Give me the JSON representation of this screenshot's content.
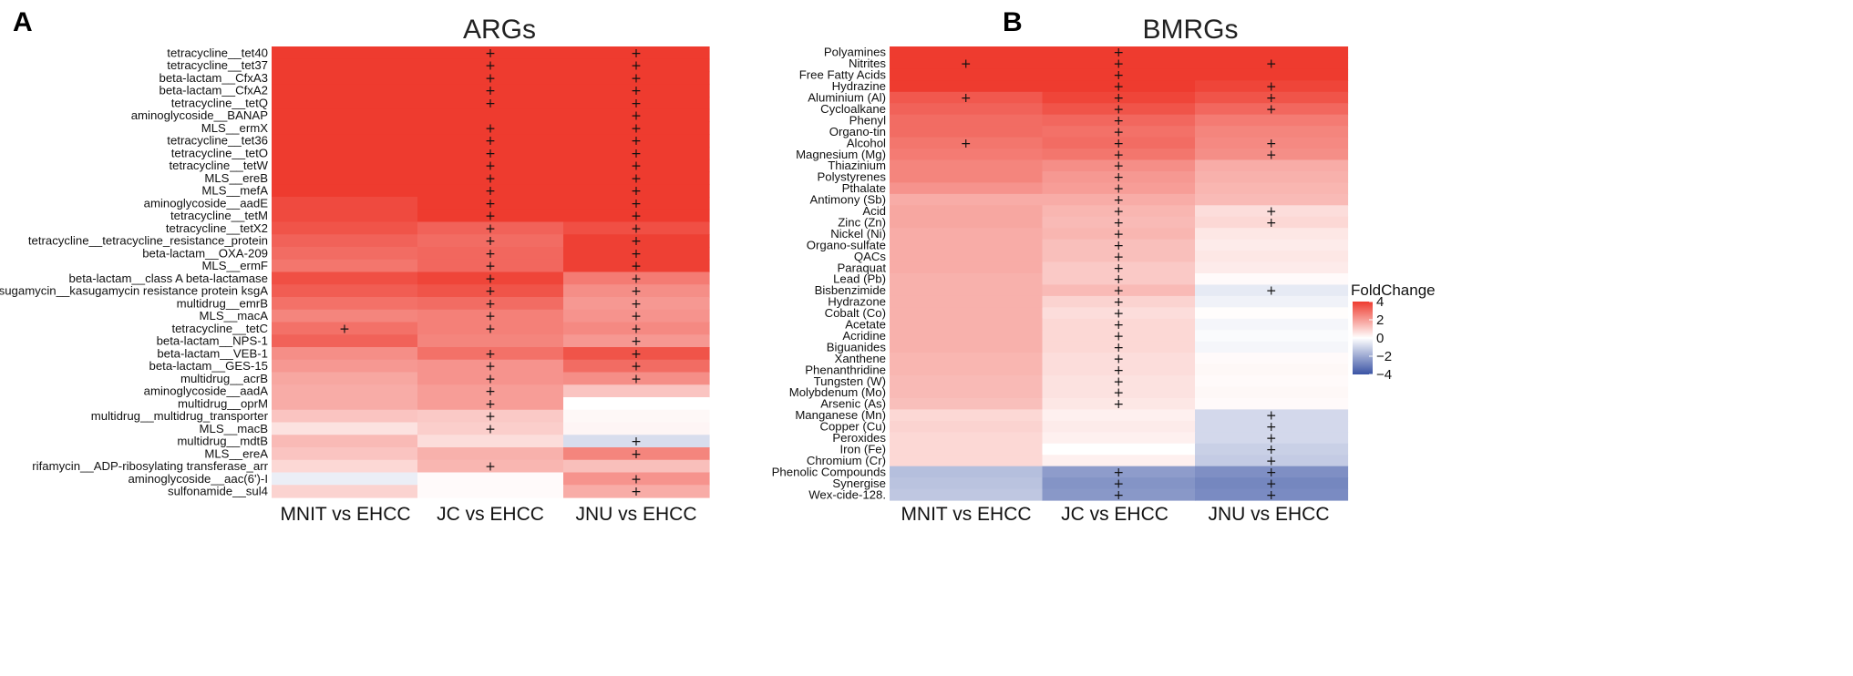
{
  "colors": {
    "high": "#ee3b2f",
    "mid": "#ffffff",
    "low": "#3a53a4"
  },
  "chart_data": [
    {
      "type": "heatmap",
      "panel_label": "A",
      "title": "ARGs",
      "columns": [
        "MNIT vs EHCC",
        "JC vs EHCC",
        "JNU vs EHCC"
      ],
      "rows": [
        "tetracycline__tet40",
        "tetracycline__tet37",
        "beta-lactam__CfxA3",
        "beta-lactam__CfxA2",
        "tetracycline__tetQ",
        "aminoglycoside__BANAP",
        "MLS__ermX",
        "tetracycline__tet36",
        "tetracycline__tetO",
        "tetracycline__tetW",
        "MLS__ereB",
        "MLS__mefA",
        "aminoglycoside__aadE",
        "tetracycline__tetM",
        "tetracycline__tetX2",
        "tetracycline__tetracycline_resistance_protein",
        "beta-lactam__OXA-209",
        "MLS__ermF",
        "beta-lactam__class A beta-lactamase",
        "kasugamycin__kasugamycin resistance protein ksgA",
        "multidrug__emrB",
        "MLS__macA",
        "tetracycline__tetC",
        "beta-lactam__NPS-1",
        "beta-lactam__VEB-1",
        "beta-lactam__GES-15",
        "multidrug__acrB",
        "aminoglycoside__aadA",
        "multidrug__oprM",
        "multidrug__multidrug_transporter",
        "MLS__macB",
        "multidrug__mdtB",
        "MLS__ereA",
        "rifamycin__ADP-ribosylating transferase_arr",
        "aminoglycoside__aac(6')-I",
        "sulfonamide__sul4"
      ],
      "values": [
        [
          4.0,
          4.0,
          4.0
        ],
        [
          4.0,
          4.0,
          4.0
        ],
        [
          4.0,
          4.0,
          4.0
        ],
        [
          4.0,
          4.0,
          4.0
        ],
        [
          4.0,
          4.0,
          4.0
        ],
        [
          4.0,
          4.0,
          4.0
        ],
        [
          4.0,
          4.0,
          4.0
        ],
        [
          4.0,
          4.0,
          4.0
        ],
        [
          4.0,
          4.0,
          4.0
        ],
        [
          4.0,
          4.0,
          4.0
        ],
        [
          4.0,
          4.0,
          4.0
        ],
        [
          4.0,
          4.0,
          4.0
        ],
        [
          3.7,
          4.0,
          4.0
        ],
        [
          3.7,
          4.0,
          4.0
        ],
        [
          3.5,
          3.2,
          3.6
        ],
        [
          3.2,
          3.0,
          3.9
        ],
        [
          3.0,
          3.1,
          3.9
        ],
        [
          2.8,
          3.1,
          3.9
        ],
        [
          3.6,
          3.8,
          2.7
        ],
        [
          3.3,
          3.5,
          2.3
        ],
        [
          2.9,
          3.0,
          2.1
        ],
        [
          2.5,
          2.6,
          2.2
        ],
        [
          2.9,
          2.6,
          2.4
        ],
        [
          3.2,
          2.5,
          2.1
        ],
        [
          2.3,
          2.9,
          3.5
        ],
        [
          2.1,
          2.2,
          3.0
        ],
        [
          1.8,
          2.2,
          2.3
        ],
        [
          1.7,
          2.0,
          1.2
        ],
        [
          1.7,
          2.0,
          0.0
        ],
        [
          1.2,
          1.1,
          0.15
        ],
        [
          0.6,
          1.0,
          0.2
        ],
        [
          1.4,
          0.7,
          -0.8
        ],
        [
          1.2,
          1.6,
          2.5
        ],
        [
          0.8,
          1.5,
          1.3
        ],
        [
          -0.4,
          0.1,
          2.2
        ],
        [
          0.9,
          0.1,
          1.7
        ]
      ],
      "significant": [
        [
          false,
          true,
          true
        ],
        [
          false,
          true,
          true
        ],
        [
          false,
          true,
          true
        ],
        [
          false,
          true,
          true
        ],
        [
          false,
          true,
          true
        ],
        [
          false,
          false,
          true
        ],
        [
          false,
          true,
          true
        ],
        [
          false,
          true,
          true
        ],
        [
          false,
          true,
          true
        ],
        [
          false,
          true,
          true
        ],
        [
          false,
          true,
          true
        ],
        [
          false,
          true,
          true
        ],
        [
          false,
          true,
          true
        ],
        [
          false,
          true,
          true
        ],
        [
          false,
          true,
          true
        ],
        [
          false,
          true,
          true
        ],
        [
          false,
          true,
          true
        ],
        [
          false,
          true,
          true
        ],
        [
          false,
          true,
          true
        ],
        [
          false,
          true,
          true
        ],
        [
          false,
          true,
          true
        ],
        [
          false,
          true,
          true
        ],
        [
          true,
          true,
          true
        ],
        [
          false,
          false,
          true
        ],
        [
          false,
          true,
          true
        ],
        [
          false,
          true,
          true
        ],
        [
          false,
          true,
          true
        ],
        [
          false,
          true,
          false
        ],
        [
          false,
          true,
          false
        ],
        [
          false,
          true,
          false
        ],
        [
          false,
          true,
          false
        ],
        [
          false,
          false,
          true
        ],
        [
          false,
          false,
          true
        ],
        [
          false,
          true,
          false
        ],
        [
          false,
          false,
          true
        ],
        [
          false,
          false,
          true
        ]
      ],
      "significance_marker": "+"
    },
    {
      "type": "heatmap",
      "panel_label": "B",
      "title": "BMRGs",
      "columns": [
        "MNIT vs EHCC",
        "JC vs EHCC",
        "JNU vs EHCC"
      ],
      "rows": [
        "Polyamines",
        "Nitrites",
        "Free Fatty Acids",
        "Hydrazine",
        "Aluminium (Al)",
        "Cycloalkane",
        "Phenyl",
        "Organo-tin",
        "Alcohol",
        "Magnesium (Mg)",
        "Thiazinium",
        "Polystyrenes",
        "Pthalate",
        "Antimony (Sb)",
        "Acid",
        "Zinc (Zn)",
        "Nickel (Ni)",
        "Organo-sulfate",
        "QACs",
        "Paraquat",
        "Lead (Pb)",
        "Bisbenzimide",
        "Hydrazone",
        "Cobalt (Co)",
        "Acetate",
        "Acridine",
        "Biguanides",
        "Xanthene",
        "Phenanthridine",
        "Tungsten (W)",
        "Molybdenum (Mo)",
        "Arsenic (As)",
        "Manganese (Mn)",
        "Copper (Cu)",
        "Peroxides",
        "Iron (Fe)",
        "Chromium (Cr)",
        "Phenolic Compounds",
        "Synergise",
        "Wex-cide-128."
      ],
      "values": [
        [
          4.0,
          4.0,
          4.0
        ],
        [
          4.0,
          4.0,
          4.0
        ],
        [
          4.0,
          4.0,
          4.0
        ],
        [
          4.0,
          4.0,
          3.8
        ],
        [
          3.4,
          3.8,
          3.5
        ],
        [
          3.2,
          3.5,
          3.1
        ],
        [
          3.0,
          3.1,
          2.7
        ],
        [
          3.0,
          2.9,
          2.5
        ],
        [
          2.8,
          3.0,
          2.4
        ],
        [
          2.7,
          2.8,
          2.3
        ],
        [
          2.5,
          2.3,
          1.7
        ],
        [
          2.5,
          2.1,
          1.6
        ],
        [
          2.2,
          2.0,
          1.5
        ],
        [
          1.7,
          1.7,
          1.4
        ],
        [
          1.8,
          1.5,
          0.7
        ],
        [
          1.8,
          1.4,
          0.8
        ],
        [
          1.7,
          1.5,
          0.5
        ],
        [
          1.7,
          1.3,
          0.4
        ],
        [
          1.7,
          1.3,
          0.5
        ],
        [
          1.7,
          1.1,
          0.4
        ],
        [
          1.6,
          1.1,
          0.1
        ],
        [
          1.6,
          1.4,
          -0.5
        ],
        [
          1.6,
          0.9,
          -0.3
        ],
        [
          1.6,
          0.7,
          0.05
        ],
        [
          1.6,
          0.8,
          -0.2
        ],
        [
          1.6,
          0.8,
          -0.1
        ],
        [
          1.6,
          0.8,
          -0.2
        ],
        [
          1.5,
          0.7,
          0.1
        ],
        [
          1.5,
          0.7,
          0.15
        ],
        [
          1.4,
          0.6,
          0.1
        ],
        [
          1.4,
          0.6,
          0.15
        ],
        [
          1.3,
          0.5,
          0.1
        ],
        [
          0.8,
          0.3,
          -0.9
        ],
        [
          0.9,
          0.4,
          -0.9
        ],
        [
          0.8,
          0.3,
          -0.9
        ],
        [
          0.8,
          0.0,
          -1.1
        ],
        [
          0.8,
          0.3,
          -1.2
        ],
        [
          -1.5,
          -2.3,
          -2.6
        ],
        [
          -1.4,
          -2.5,
          -2.8
        ],
        [
          -1.3,
          -2.4,
          -2.7
        ]
      ],
      "significant": [
        [
          false,
          true,
          false
        ],
        [
          true,
          true,
          true
        ],
        [
          false,
          true,
          false
        ],
        [
          false,
          true,
          true
        ],
        [
          true,
          true,
          true
        ],
        [
          false,
          true,
          true
        ],
        [
          false,
          true,
          false
        ],
        [
          false,
          true,
          false
        ],
        [
          true,
          true,
          true
        ],
        [
          false,
          true,
          true
        ],
        [
          false,
          true,
          false
        ],
        [
          false,
          true,
          false
        ],
        [
          false,
          true,
          false
        ],
        [
          false,
          true,
          false
        ],
        [
          false,
          true,
          true
        ],
        [
          false,
          true,
          true
        ],
        [
          false,
          true,
          false
        ],
        [
          false,
          true,
          false
        ],
        [
          false,
          true,
          false
        ],
        [
          false,
          true,
          false
        ],
        [
          false,
          true,
          false
        ],
        [
          false,
          true,
          true
        ],
        [
          false,
          true,
          false
        ],
        [
          false,
          true,
          false
        ],
        [
          false,
          true,
          false
        ],
        [
          false,
          true,
          false
        ],
        [
          false,
          true,
          false
        ],
        [
          false,
          true,
          false
        ],
        [
          false,
          true,
          false
        ],
        [
          false,
          true,
          false
        ],
        [
          false,
          true,
          false
        ],
        [
          false,
          true,
          false
        ],
        [
          false,
          false,
          true
        ],
        [
          false,
          false,
          true
        ],
        [
          false,
          false,
          true
        ],
        [
          false,
          false,
          true
        ],
        [
          false,
          false,
          true
        ],
        [
          false,
          true,
          true
        ],
        [
          false,
          true,
          true
        ],
        [
          false,
          true,
          true
        ]
      ],
      "significance_marker": "+"
    }
  ],
  "legend": {
    "title": "FoldChange",
    "ticks": [
      "4",
      "2",
      "0",
      "−2",
      "−4"
    ],
    "tick_values": [
      4,
      2,
      0,
      -2,
      -4
    ],
    "range": [
      -4,
      4
    ]
  }
}
